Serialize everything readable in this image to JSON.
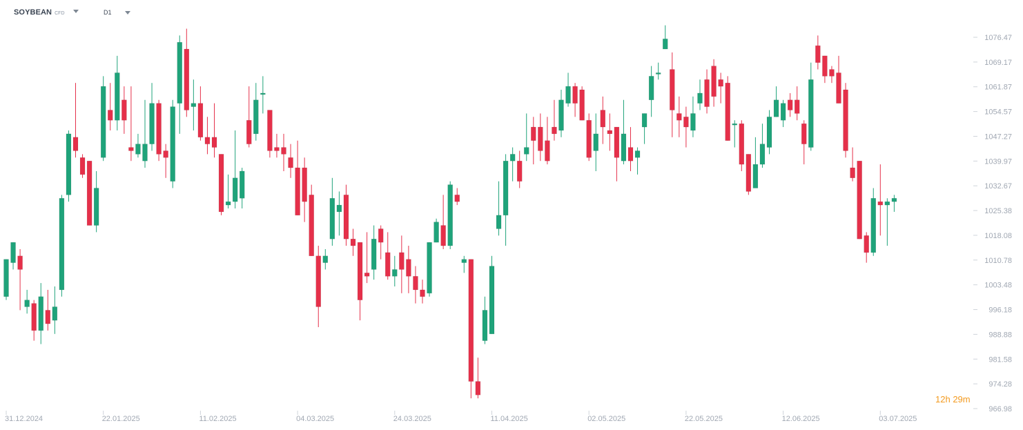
{
  "toolbar": {
    "symbol": "SOYBEAN",
    "symbol_type": "CFD",
    "timeframe": "D1"
  },
  "countdown": {
    "hours": "12",
    "h": "h",
    "minutes": "29",
    "m": "m"
  },
  "colors": {
    "up": "#1fa37a",
    "down": "#e5304a",
    "axis_text": "#a1a8b3",
    "countdown": "#f39a1f"
  },
  "chart_data": {
    "type": "candlestick",
    "title": "",
    "ylim": [
      966.98,
      1076.47
    ],
    "y_ticks": [
      "1076.47",
      "1069.17",
      "1061.87",
      "1054.57",
      "1047.27",
      "1039.97",
      "1032.67",
      "1025.38",
      "1018.08",
      "1010.78",
      "1003.48",
      "996.18",
      "988.88",
      "981.58",
      "974.28",
      "966.98"
    ],
    "x_ticks": [
      "31.12.2024",
      "22.01.2025",
      "11.02.2025",
      "04.03.2025",
      "24.03.2025",
      "11.04.2025",
      "02.05.2025",
      "22.05.2025",
      "12.06.2025",
      "03.07.2025"
    ],
    "x_tick_candle_index": [
      0,
      14,
      28,
      42,
      56,
      70,
      84,
      98,
      112,
      126
    ],
    "candles": [
      [
        1000,
        1011,
        1010,
        999
      ],
      [
        1010,
        1016,
        1013,
        1008
      ],
      [
        1012,
        1008,
        1014,
        996
      ],
      [
        997,
        999,
        1002,
        995
      ],
      [
        998,
        990,
        999,
        987
      ],
      [
        990,
        1000,
        1004,
        986
      ],
      [
        996,
        992,
        1002,
        990
      ],
      [
        993,
        997,
        1003,
        989
      ],
      [
        1002,
        1029,
        1030,
        1000
      ],
      [
        1030,
        1048,
        1049,
        1028
      ],
      [
        1047,
        1043,
        1063,
        1041
      ],
      [
        1041,
        1036,
        1042,
        1035
      ],
      [
        1040,
        1021,
        1040,
        1021
      ],
      [
        1021,
        1032,
        1037,
        1019
      ],
      [
        1041,
        1062,
        1065,
        1040
      ],
      [
        1055,
        1052,
        1063,
        1049
      ],
      [
        1052,
        1066,
        1071,
        1049
      ],
      [
        1058,
        1052,
        1062,
        1048
      ],
      [
        1044,
        1043,
        1062,
        1040
      ],
      [
        1042,
        1045,
        1048,
        1041
      ],
      [
        1040,
        1045,
        1058,
        1038
      ],
      [
        1045,
        1057,
        1063,
        1043
      ],
      [
        1057,
        1042,
        1058,
        1040
      ],
      [
        1043,
        1041,
        1045,
        1035
      ],
      [
        1034,
        1056,
        1058,
        1032
      ],
      [
        1057,
        1075,
        1077,
        1048
      ],
      [
        1073,
        1055,
        1079,
        1053
      ],
      [
        1056,
        1057,
        1064,
        1049
      ],
      [
        1057,
        1047,
        1062,
        1046
      ],
      [
        1047,
        1045,
        1053,
        1042
      ],
      [
        1047,
        1044,
        1057,
        1041
      ],
      [
        1042,
        1025,
        1042,
        1024
      ],
      [
        1027,
        1028,
        1036,
        1026
      ],
      [
        1028,
        1035,
        1049,
        1026
      ],
      [
        1029,
        1037,
        1038,
        1026
      ],
      [
        1052,
        1045,
        1062,
        1044
      ],
      [
        1048,
        1058,
        1063,
        1046
      ],
      [
        1060,
        1060,
        1065,
        1054
      ],
      [
        1055,
        1043,
        1055,
        1041
      ],
      [
        1044,
        1043,
        1048,
        1041
      ],
      [
        1044,
        1042,
        1048,
        1037
      ],
      [
        1041,
        1038,
        1045,
        1035
      ],
      [
        1038,
        1024,
        1046,
        1026
      ],
      [
        1038,
        1028,
        1041,
        1022
      ],
      [
        1030,
        1012,
        1033,
        1020
      ],
      [
        1012,
        997,
        1015,
        991
      ],
      [
        1010,
        1012,
        1014,
        1008
      ],
      [
        1017,
        1029,
        1035,
        1015
      ],
      [
        1025,
        1027,
        1031,
        1018
      ],
      [
        1030,
        1017,
        1033,
        1015
      ],
      [
        1017,
        1015,
        1020,
        1012
      ],
      [
        1016,
        999,
        1016,
        993
      ],
      [
        1007,
        1006,
        1019,
        1004
      ],
      [
        1008,
        1017,
        1021,
        1005
      ],
      [
        1020,
        1016,
        1021,
        1011
      ],
      [
        1013,
        1006,
        1019,
        1005
      ],
      [
        1006,
        1008,
        1012,
        1003
      ],
      [
        1013,
        1008,
        1018,
        1001
      ],
      [
        1011,
        1006,
        1015,
        1001
      ],
      [
        1006,
        1002,
        1009,
        998
      ],
      [
        1002,
        1000,
        1005,
        998
      ],
      [
        1001,
        1016,
        1016,
        1000
      ],
      [
        1016,
        1022,
        1023,
        1019
      ],
      [
        1021,
        1015,
        1030,
        1014
      ],
      [
        1015,
        1033,
        1034,
        1014
      ],
      [
        1030,
        1028,
        1032,
        1027
      ],
      [
        1010,
        1011,
        1012,
        1007
      ],
      [
        1011,
        975,
        1011,
        970
      ],
      [
        975,
        971,
        982,
        970
      ],
      [
        987,
        996,
        1000,
        986
      ],
      [
        989,
        1009,
        1012,
        989
      ],
      [
        1020,
        1024,
        1034,
        1018
      ],
      [
        1024,
        1040,
        1042,
        1015
      ],
      [
        1040,
        1042,
        1044,
        1034
      ],
      [
        1040,
        1034,
        1043,
        1032
      ],
      [
        1042,
        1044,
        1054,
        1040
      ],
      [
        1050,
        1046,
        1053,
        1039
      ],
      [
        1050,
        1043,
        1054,
        1040
      ],
      [
        1046,
        1040,
        1053,
        1039
      ],
      [
        1050,
        1048,
        1058,
        1046
      ],
      [
        1049,
        1058,
        1061,
        1047
      ],
      [
        1057,
        1062,
        1066,
        1056
      ],
      [
        1062,
        1057,
        1063,
        1053
      ],
      [
        1061,
        1052,
        1062,
        1052
      ],
      [
        1052,
        1041,
        1054,
        1040
      ],
      [
        1043,
        1048,
        1054,
        1037
      ],
      [
        1055,
        1050,
        1059,
        1045
      ],
      [
        1049,
        1048,
        1054,
        1043
      ],
      [
        1050,
        1041,
        1050,
        1034
      ],
      [
        1040,
        1048,
        1058,
        1039
      ],
      [
        1044,
        1040,
        1050,
        1037
      ],
      [
        1041,
        1043,
        1044,
        1036
      ],
      [
        1050,
        1054,
        1054,
        1045
      ],
      [
        1058,
        1065,
        1068,
        1053
      ],
      [
        1066,
        1066,
        1069,
        1064
      ],
      [
        1073,
        1076,
        1080,
        1075
      ],
      [
        1067,
        1055,
        1072,
        1047
      ],
      [
        1054,
        1052,
        1059,
        1047
      ],
      [
        1053,
        1050,
        1056,
        1044
      ],
      [
        1049,
        1054,
        1059,
        1047
      ],
      [
        1057,
        1060,
        1064,
        1055
      ],
      [
        1064,
        1056,
        1067,
        1054
      ],
      [
        1068,
        1059,
        1070,
        1056
      ],
      [
        1064,
        1062,
        1066,
        1057
      ],
      [
        1063,
        1046,
        1065,
        1046
      ],
      [
        1051,
        1051,
        1052,
        1044
      ],
      [
        1051,
        1039,
        1052,
        1037
      ],
      [
        1042,
        1031,
        1042,
        1030
      ],
      [
        1032,
        1039,
        1047,
        1034
      ],
      [
        1039,
        1045,
        1051,
        1038
      ],
      [
        1044,
        1053,
        1055,
        1042
      ],
      [
        1053,
        1058,
        1062,
        1054
      ],
      [
        1052,
        1057,
        1058,
        1050
      ],
      [
        1058,
        1055,
        1060,
        1053
      ],
      [
        1058,
        1054,
        1062,
        1052
      ],
      [
        1051,
        1045,
        1052,
        1039
      ],
      [
        1044,
        1064,
        1069,
        1043
      ],
      [
        1074,
        1069,
        1077,
        1067
      ],
      [
        1071,
        1065,
        1071,
        1063
      ],
      [
        1067,
        1065,
        1068,
        1063
      ],
      [
        1066,
        1057,
        1071,
        1060
      ],
      [
        1061,
        1043,
        1063,
        1041
      ],
      [
        1038,
        1035,
        1044,
        1034
      ],
      [
        1040,
        1017,
        1040,
        1017
      ],
      [
        1018,
        1013,
        1019,
        1010
      ],
      [
        1013,
        1029,
        1032,
        1012
      ],
      [
        1028,
        1027,
        1039,
        1018
      ],
      [
        1027,
        1028,
        1029,
        1015
      ],
      [
        1028,
        1029,
        1030,
        1025
      ]
    ]
  }
}
